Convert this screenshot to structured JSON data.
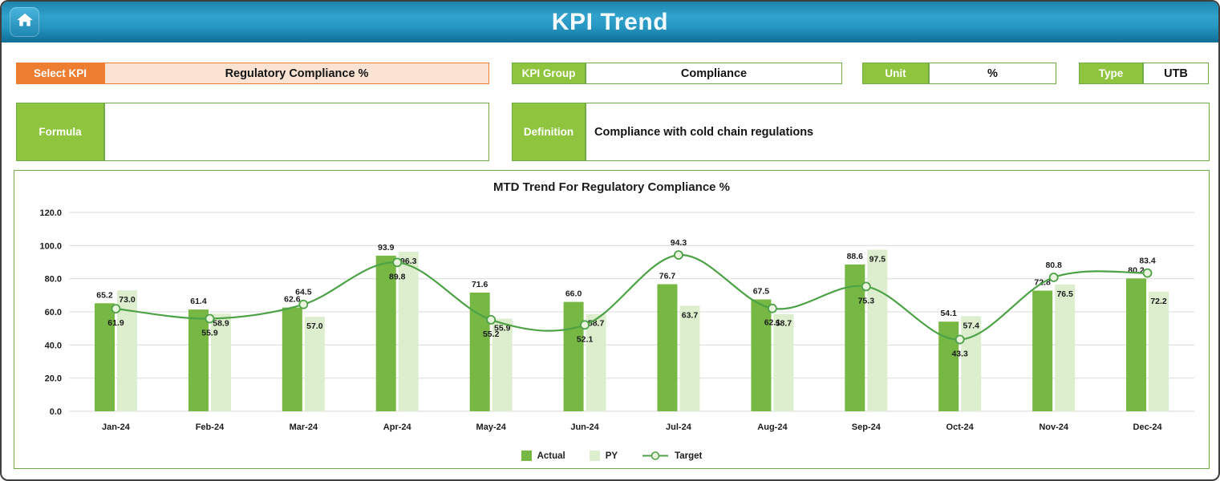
{
  "header": {
    "title": "KPI Trend"
  },
  "controls": {
    "select_kpi": {
      "label": "Select KPI",
      "value": "Regulatory Compliance %"
    },
    "kpi_group": {
      "label": "KPI Group",
      "value": "Compliance"
    },
    "unit": {
      "label": "Unit",
      "value": "%"
    },
    "type": {
      "label": "Type",
      "value": "UTB"
    },
    "formula": {
      "label": "Formula",
      "value": ""
    },
    "definition": {
      "label": "Definition",
      "value": "Compliance with cold chain regulations"
    }
  },
  "colors": {
    "orange": "#ED7D31",
    "orange_light": "#FBE3D3",
    "green_label": "#8FC43F",
    "green_border": "#70AD47",
    "actual": "#76B843",
    "py": "#DCEECE",
    "target": "#4DA247",
    "marker_fill": "#EAF4DF",
    "grid": "#D9D9D9",
    "header_teal": "#2FA3CE"
  },
  "chart_data": {
    "type": "bar",
    "subtype": "grouped bars with smoothed target line overlay",
    "title": "MTD Trend For Regulatory Compliance %",
    "categories": [
      "Jan-24",
      "Feb-24",
      "Mar-24",
      "Apr-24",
      "May-24",
      "Jun-24",
      "Jul-24",
      "Aug-24",
      "Sep-24",
      "Oct-24",
      "Nov-24",
      "Dec-24"
    ],
    "series": [
      {
        "name": "Actual",
        "type": "bar",
        "values": [
          65.2,
          61.4,
          62.6,
          93.9,
          71.6,
          66.0,
          76.7,
          67.5,
          88.6,
          54.1,
          72.8,
          80.2
        ]
      },
      {
        "name": "PY",
        "type": "bar",
        "values": [
          73.0,
          58.9,
          57.0,
          96.3,
          55.9,
          58.7,
          63.7,
          58.7,
          97.5,
          57.4,
          76.5,
          72.2
        ]
      },
      {
        "name": "Target",
        "type": "line",
        "values": [
          61.9,
          55.9,
          64.5,
          89.8,
          55.2,
          52.1,
          94.3,
          62.1,
          75.3,
          43.3,
          80.8,
          83.4
        ]
      }
    ],
    "ylim": [
      0,
      120
    ],
    "ytick_step": 20,
    "ytick_labels": [
      "0.0",
      "20.0",
      "40.0",
      "60.0",
      "80.0",
      "100.0",
      "120.0"
    ],
    "grid": true,
    "legend_position": "bottom"
  }
}
